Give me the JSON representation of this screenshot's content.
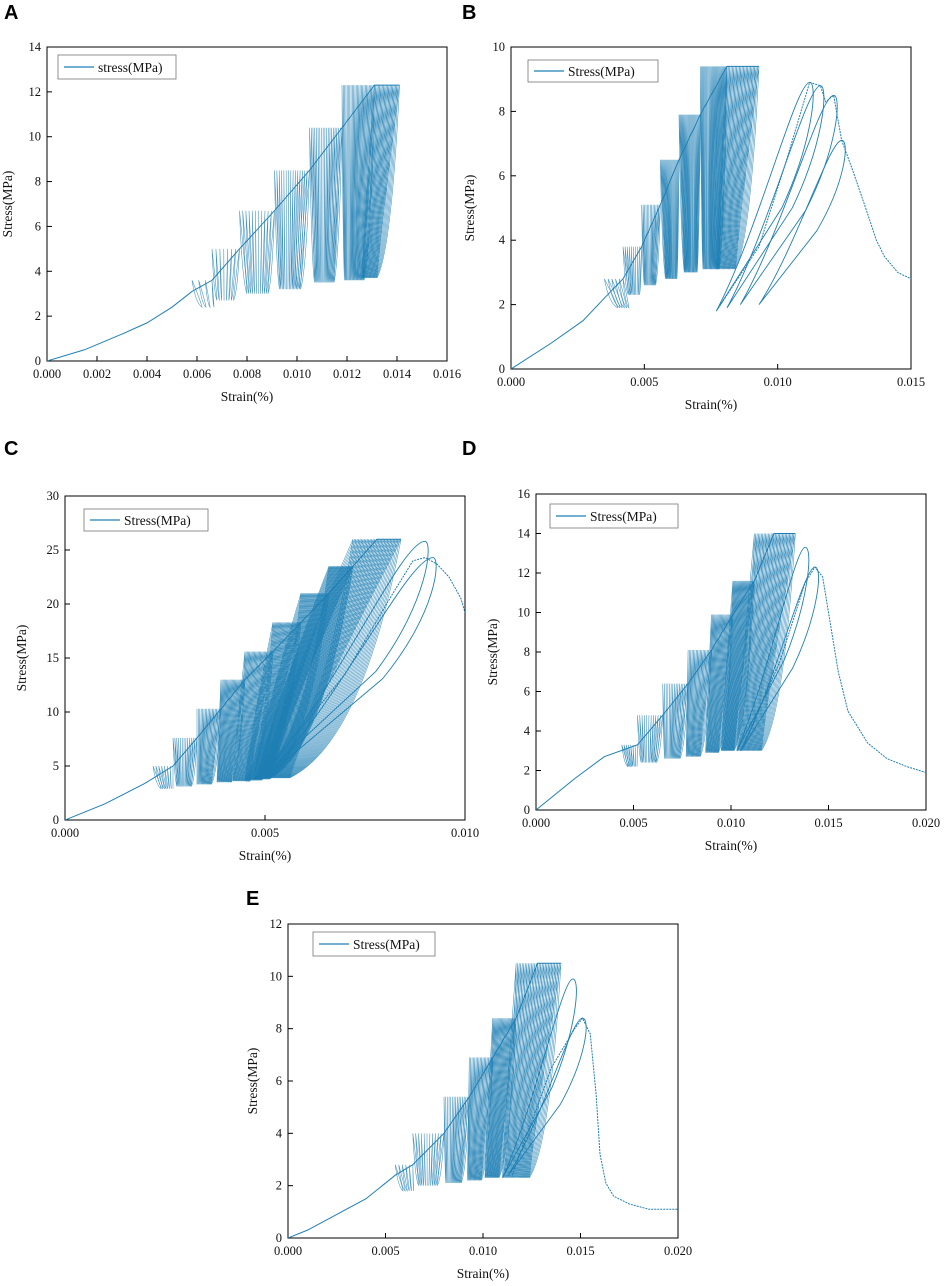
{
  "figure": {
    "series_color": "#1f7fb4",
    "panels": [
      "A",
      "B",
      "C",
      "D",
      "E"
    ]
  },
  "chart_data": [
    {
      "id": "A",
      "type": "line",
      "xlabel": "Strain(%)",
      "ylabel": "Stress(MPa)",
      "xlim": [
        0,
        0.016
      ],
      "ylim": [
        0,
        14
      ],
      "xticks": [
        0.0,
        0.002,
        0.004,
        0.006,
        0.008,
        0.01,
        0.012,
        0.014,
        0.016
      ],
      "xtick_labels": [
        "0.000",
        "0.002",
        "0.004",
        "0.006",
        "0.008",
        "0.010",
        "0.012",
        "0.014",
        "0.016"
      ],
      "yticks": [
        0,
        2,
        4,
        6,
        8,
        10,
        12,
        14
      ],
      "ytick_labels": [
        "0",
        "2",
        "4",
        "6",
        "8",
        "10",
        "12",
        "14"
      ],
      "legend": "stress(MPa)",
      "legend_position": "top-left",
      "series": [
        {
          "name": "stress(MPa)",
          "envelope_x": [
            0.0,
            0.0015,
            0.003,
            0.004,
            0.005,
            0.0058,
            0.0066,
            0.0077,
            0.0091,
            0.0105,
            0.0118,
            0.0131,
            0.0141
          ],
          "envelope_y": [
            0.0,
            0.5,
            1.2,
            1.7,
            2.4,
            3.1,
            3.6,
            5.0,
            6.7,
            8.5,
            10.4,
            12.3,
            12.3
          ],
          "cycles": [
            {
              "start_x": 0.0058,
              "peak_x": 0.0066,
              "peak_y": 3.6,
              "valley_x": 0.0062,
              "valley_y": 2.4,
              "count": 4
            },
            {
              "start_x": 0.0066,
              "peak_x": 0.0077,
              "peak_y": 5.0,
              "valley_x": 0.0068,
              "valley_y": 2.7,
              "count": 8
            },
            {
              "start_x": 0.0077,
              "peak_x": 0.0091,
              "peak_y": 6.7,
              "valley_x": 0.008,
              "valley_y": 3.0,
              "count": 12
            },
            {
              "start_x": 0.0091,
              "peak_x": 0.0105,
              "peak_y": 8.5,
              "valley_x": 0.0093,
              "valley_y": 3.2,
              "count": 16
            },
            {
              "start_x": 0.0105,
              "peak_x": 0.0118,
              "peak_y": 10.4,
              "valley_x": 0.0107,
              "valley_y": 3.5,
              "count": 20
            },
            {
              "start_x": 0.0118,
              "peak_x": 0.0131,
              "peak_y": 12.3,
              "valley_x": 0.0119,
              "valley_y": 3.6,
              "count": 26
            },
            {
              "start_x": 0.0131,
              "peak_x": 0.0141,
              "peak_y": 12.3,
              "valley_x": 0.0126,
              "valley_y": 3.7,
              "count": 20
            }
          ],
          "post_peak_x": [],
          "post_peak_y": []
        }
      ]
    },
    {
      "id": "B",
      "type": "line",
      "xlabel": "Strain(%)",
      "ylabel": "Stress(MPa)",
      "xlim": [
        0,
        0.015
      ],
      "ylim": [
        0,
        10
      ],
      "xticks": [
        0.0,
        0.005,
        0.01,
        0.015
      ],
      "xtick_labels": [
        "0.000",
        "0.005",
        "0.010",
        "0.015"
      ],
      "yticks": [
        0,
        2,
        4,
        6,
        8,
        10
      ],
      "ytick_labels": [
        "0",
        "2",
        "4",
        "6",
        "8",
        "10"
      ],
      "legend": "Stress(MPa)",
      "legend_position": "top-left",
      "series": [
        {
          "name": "Stress(MPa)",
          "envelope_x": [
            0.0,
            0.0015,
            0.0027,
            0.0035,
            0.0042,
            0.0049,
            0.0056,
            0.0063,
            0.0071,
            0.0081,
            0.0093
          ],
          "envelope_y": [
            0.0,
            0.8,
            1.5,
            2.2,
            2.8,
            3.8,
            5.1,
            6.5,
            7.9,
            9.4,
            9.4
          ],
          "cycles": [
            {
              "start_x": 0.0035,
              "peak_x": 0.0042,
              "peak_y": 2.8,
              "valley_x": 0.004,
              "valley_y": 1.9,
              "count": 6
            },
            {
              "start_x": 0.0042,
              "peak_x": 0.0049,
              "peak_y": 3.8,
              "valley_x": 0.0044,
              "valley_y": 2.3,
              "count": 10
            },
            {
              "start_x": 0.0049,
              "peak_x": 0.0056,
              "peak_y": 5.1,
              "valley_x": 0.005,
              "valley_y": 2.6,
              "count": 14
            },
            {
              "start_x": 0.0056,
              "peak_x": 0.0063,
              "peak_y": 6.5,
              "valley_x": 0.0058,
              "valley_y": 2.8,
              "count": 20
            },
            {
              "start_x": 0.0063,
              "peak_x": 0.0071,
              "peak_y": 7.9,
              "valley_x": 0.0065,
              "valley_y": 3.0,
              "count": 24
            },
            {
              "start_x": 0.0071,
              "peak_x": 0.0081,
              "peak_y": 9.4,
              "valley_x": 0.0072,
              "valley_y": 3.1,
              "count": 30
            },
            {
              "start_x": 0.0081,
              "peak_x": 0.0093,
              "peak_y": 9.4,
              "valley_x": 0.0077,
              "valley_y": 3.1,
              "count": 24
            }
          ],
          "post_peak_x": [
            0.0077,
            0.0093,
            0.0103,
            0.0112,
            0.0116,
            0.0118,
            0.0121,
            0.0124,
            0.0128,
            0.0133,
            0.0137,
            0.014,
            0.0145,
            0.015
          ],
          "post_peak_y": [
            1.8,
            3.8,
            6.4,
            8.9,
            8.8,
            8.3,
            8.5,
            7.1,
            6.2,
            5.0,
            4.0,
            3.5,
            3.0,
            2.8
          ],
          "loops": [
            {
              "x0": 0.0077,
              "y0": 1.8,
              "peak_x": 0.0112,
              "peak_y": 8.9
            },
            {
              "x0": 0.0081,
              "y0": 1.9,
              "peak_x": 0.0116,
              "peak_y": 8.8
            },
            {
              "x0": 0.0086,
              "y0": 2.0,
              "peak_x": 0.0121,
              "peak_y": 8.5
            },
            {
              "x0": 0.0093,
              "y0": 2.0,
              "peak_x": 0.0124,
              "peak_y": 7.1
            }
          ]
        }
      ]
    },
    {
      "id": "C",
      "type": "line",
      "xlabel": "Strain(%)",
      "ylabel": "Stress(MPa)",
      "xlim": [
        0,
        0.01
      ],
      "ylim": [
        0,
        30
      ],
      "xticks": [
        0.0,
        0.005,
        0.01
      ],
      "xtick_labels": [
        "0.000",
        "0.005",
        "0.010"
      ],
      "yticks": [
        0,
        5,
        10,
        15,
        20,
        25,
        30
      ],
      "ytick_labels": [
        "0",
        "5",
        "10",
        "15",
        "20",
        "25",
        "30"
      ],
      "legend": "Stress(MPa)",
      "legend_position": "top-left",
      "series": [
        {
          "name": "Stress(MPa)",
          "envelope_x": [
            0.0,
            0.001,
            0.002,
            0.0027,
            0.0033,
            0.0039,
            0.0045,
            0.0052,
            0.0059,
            0.0066,
            0.0072,
            0.0078,
            0.0084
          ],
          "envelope_y": [
            0.0,
            1.5,
            3.4,
            5.0,
            7.6,
            10.3,
            13.0,
            15.6,
            18.3,
            21.0,
            23.5,
            26.0,
            26.0
          ],
          "cycles": [
            {
              "start_x": 0.0022,
              "peak_x": 0.0027,
              "peak_y": 5.0,
              "valley_x": 0.0024,
              "valley_y": 2.9,
              "count": 8
            },
            {
              "start_x": 0.0027,
              "peak_x": 0.0033,
              "peak_y": 7.6,
              "valley_x": 0.0028,
              "valley_y": 3.1,
              "count": 14
            },
            {
              "start_x": 0.0033,
              "peak_x": 0.0039,
              "peak_y": 10.3,
              "valley_x": 0.0033,
              "valley_y": 3.3,
              "count": 18
            },
            {
              "start_x": 0.0039,
              "peak_x": 0.0045,
              "peak_y": 13.0,
              "valley_x": 0.0038,
              "valley_y": 3.5,
              "count": 22
            },
            {
              "start_x": 0.0045,
              "peak_x": 0.0052,
              "peak_y": 15.6,
              "valley_x": 0.0042,
              "valley_y": 3.6,
              "count": 24
            },
            {
              "start_x": 0.0052,
              "peak_x": 0.0059,
              "peak_y": 18.3,
              "valley_x": 0.0045,
              "valley_y": 3.7,
              "count": 26
            },
            {
              "start_x": 0.0059,
              "peak_x": 0.0066,
              "peak_y": 21.0,
              "valley_x": 0.0047,
              "valley_y": 3.8,
              "count": 28
            },
            {
              "start_x": 0.0066,
              "peak_x": 0.0072,
              "peak_y": 23.5,
              "valley_x": 0.0048,
              "valley_y": 3.9,
              "count": 30
            },
            {
              "start_x": 0.0072,
              "peak_x": 0.0084,
              "peak_y": 26.0,
              "valley_x": 0.0049,
              "valley_y": 3.9,
              "count": 34
            }
          ],
          "post_peak_x": [
            0.0049,
            0.007,
            0.0082,
            0.0087,
            0.009,
            0.0093,
            0.0096,
            0.0099,
            0.01
          ],
          "post_peak_y": [
            3.9,
            13.5,
            21.0,
            24.0,
            24.3,
            23.7,
            22.5,
            20.5,
            19.2
          ],
          "loops": [
            {
              "x0": 0.0049,
              "y0": 3.9,
              "peak_x": 0.009,
              "peak_y": 25.8
            },
            {
              "x0": 0.005,
              "y0": 3.9,
              "peak_x": 0.0092,
              "peak_y": 24.3
            }
          ]
        }
      ]
    },
    {
      "id": "D",
      "type": "line",
      "xlabel": "Strain(%)",
      "ylabel": "Stress(MPa)",
      "xlim": [
        0,
        0.02
      ],
      "ylim": [
        0,
        16
      ],
      "xticks": [
        0.0,
        0.005,
        0.01,
        0.015,
        0.02
      ],
      "xtick_labels": [
        "0.000",
        "0.005",
        "0.010",
        "0.015",
        "0.020"
      ],
      "yticks": [
        0,
        2,
        4,
        6,
        8,
        10,
        12,
        14,
        16
      ],
      "ytick_labels": [
        "0",
        "2",
        "4",
        "6",
        "8",
        "10",
        "12",
        "14",
        "16"
      ],
      "legend": "Stress(MPa)",
      "legend_position": "top-left",
      "series": [
        {
          "name": "Stress(MPa)",
          "envelope_x": [
            0.0,
            0.002,
            0.0035,
            0.0052,
            0.0065,
            0.0078,
            0.009,
            0.0101,
            0.0112,
            0.0122,
            0.0133
          ],
          "envelope_y": [
            0.0,
            1.6,
            2.7,
            3.3,
            4.8,
            6.4,
            8.1,
            9.9,
            11.6,
            14.0,
            14.0
          ],
          "cycles": [
            {
              "start_x": 0.0044,
              "peak_x": 0.0052,
              "peak_y": 3.3,
              "valley_x": 0.0047,
              "valley_y": 2.2,
              "count": 8
            },
            {
              "start_x": 0.0052,
              "peak_x": 0.0065,
              "peak_y": 4.8,
              "valley_x": 0.0054,
              "valley_y": 2.4,
              "count": 12
            },
            {
              "start_x": 0.0065,
              "peak_x": 0.0078,
              "peak_y": 6.4,
              "valley_x": 0.0066,
              "valley_y": 2.6,
              "count": 16
            },
            {
              "start_x": 0.0078,
              "peak_x": 0.009,
              "peak_y": 8.1,
              "valley_x": 0.0077,
              "valley_y": 2.7,
              "count": 18
            },
            {
              "start_x": 0.009,
              "peak_x": 0.0101,
              "peak_y": 9.9,
              "valley_x": 0.0087,
              "valley_y": 2.9,
              "count": 20
            },
            {
              "start_x": 0.0101,
              "peak_x": 0.0112,
              "peak_y": 11.6,
              "valley_x": 0.0095,
              "valley_y": 3.0,
              "count": 24
            },
            {
              "start_x": 0.0112,
              "peak_x": 0.0133,
              "peak_y": 14.0,
              "valley_x": 0.0103,
              "valley_y": 3.0,
              "count": 30
            }
          ],
          "post_peak_x": [
            0.0105,
            0.0125,
            0.0138,
            0.0143,
            0.0147,
            0.015,
            0.0155,
            0.016,
            0.017,
            0.018,
            0.019,
            0.02
          ],
          "post_peak_y": [
            3.0,
            7.5,
            11.5,
            12.3,
            11.8,
            10.0,
            7.0,
            5.0,
            3.4,
            2.6,
            2.2,
            1.9
          ],
          "loops": [
            {
              "x0": 0.0103,
              "y0": 3.0,
              "peak_x": 0.0138,
              "peak_y": 13.3
            },
            {
              "x0": 0.0105,
              "y0": 3.0,
              "peak_x": 0.0143,
              "peak_y": 12.3
            }
          ]
        }
      ]
    },
    {
      "id": "E",
      "type": "line",
      "xlabel": "Strain(%)",
      "ylabel": "Stress(MPa)",
      "xlim": [
        0,
        0.02
      ],
      "ylim": [
        0,
        12
      ],
      "xticks": [
        0.0,
        0.005,
        0.01,
        0.015,
        0.02
      ],
      "xtick_labels": [
        "0.000",
        "0.005",
        "0.010",
        "0.015",
        "0.020"
      ],
      "yticks": [
        0,
        2,
        4,
        6,
        8,
        10,
        12
      ],
      "ytick_labels": [
        "0",
        "2",
        "4",
        "6",
        "8",
        "10",
        "12"
      ],
      "legend": "Stress(MPa)",
      "legend_position": "top-left",
      "series": [
        {
          "name": "Stress(MPa)",
          "envelope_x": [
            0.0,
            0.001,
            0.0025,
            0.004,
            0.0055,
            0.0064,
            0.008,
            0.0093,
            0.0105,
            0.0117,
            0.0128,
            0.014
          ],
          "envelope_y": [
            0.0,
            0.3,
            0.9,
            1.5,
            2.4,
            2.8,
            4.0,
            5.4,
            6.9,
            8.4,
            10.5,
            10.5
          ],
          "cycles": [
            {
              "start_x": 0.0055,
              "peak_x": 0.0064,
              "peak_y": 2.8,
              "valley_x": 0.0059,
              "valley_y": 1.8,
              "count": 6
            },
            {
              "start_x": 0.0064,
              "peak_x": 0.008,
              "peak_y": 4.0,
              "valley_x": 0.0067,
              "valley_y": 2.0,
              "count": 12
            },
            {
              "start_x": 0.008,
              "peak_x": 0.0093,
              "peak_y": 5.4,
              "valley_x": 0.0081,
              "valley_y": 2.1,
              "count": 16
            },
            {
              "start_x": 0.0093,
              "peak_x": 0.0105,
              "peak_y": 6.9,
              "valley_x": 0.0092,
              "valley_y": 2.2,
              "count": 18
            },
            {
              "start_x": 0.0105,
              "peak_x": 0.0117,
              "peak_y": 8.4,
              "valley_x": 0.0101,
              "valley_y": 2.3,
              "count": 22
            },
            {
              "start_x": 0.0117,
              "peak_x": 0.014,
              "peak_y": 10.5,
              "valley_x": 0.011,
              "valley_y": 2.3,
              "count": 30
            }
          ],
          "post_peak_x": [
            0.0115,
            0.0135,
            0.0147,
            0.0151,
            0.0155,
            0.0158,
            0.016,
            0.0163,
            0.0167,
            0.0175,
            0.0185,
            0.02
          ],
          "post_peak_y": [
            2.4,
            6.5,
            8.0,
            8.4,
            7.8,
            5.5,
            3.2,
            2.1,
            1.6,
            1.3,
            1.1,
            1.1
          ],
          "loops": [
            {
              "x0": 0.011,
              "y0": 2.3,
              "peak_x": 0.0146,
              "peak_y": 9.9
            },
            {
              "x0": 0.0113,
              "y0": 2.4,
              "peak_x": 0.0151,
              "peak_y": 8.4
            }
          ]
        }
      ]
    }
  ]
}
